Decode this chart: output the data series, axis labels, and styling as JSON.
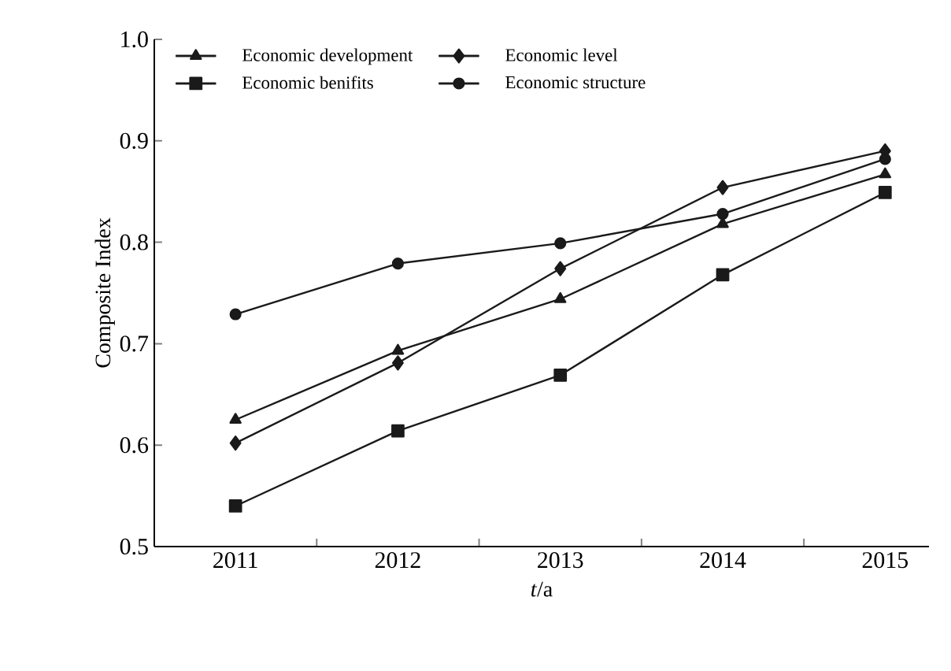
{
  "chart_data": {
    "type": "line",
    "xlabel": "*t*/a",
    "ylabel": "Composite Index",
    "categories": [
      "2011",
      "2012",
      "2013",
      "2014",
      "2015"
    ],
    "ylim": [
      0.5,
      1.0
    ],
    "yticks": [
      {
        "value": 0.5,
        "label": "0.5"
      },
      {
        "value": 0.6,
        "label": "0.6"
      },
      {
        "value": 0.7,
        "label": "0.7"
      },
      {
        "value": 0.8,
        "label": "0.8"
      },
      {
        "value": 0.9,
        "label": "0.9"
      },
      {
        "value": 1.0,
        "label": "1.0"
      }
    ],
    "legend": "top left",
    "grid": false,
    "line_style": "solid",
    "series": [
      {
        "name": "Economic development",
        "color": "#1a1a1a",
        "marker": "triangle",
        "values": [
          0.625,
          0.693,
          0.744,
          0.818,
          0.867
        ]
      },
      {
        "name": "Economic level",
        "color": "#1a1a1a",
        "marker": "diamond",
        "values": [
          0.602,
          0.681,
          0.774,
          0.854,
          0.89
        ]
      },
      {
        "name": "Economic benifits",
        "color": "#1a1a1a",
        "marker": "square",
        "values": [
          0.54,
          0.614,
          0.669,
          0.768,
          0.849
        ]
      },
      {
        "name": "Economic structure",
        "color": "#1a1a1a",
        "marker": "circle",
        "values": [
          0.729,
          0.779,
          0.799,
          0.828,
          0.882
        ]
      }
    ]
  }
}
